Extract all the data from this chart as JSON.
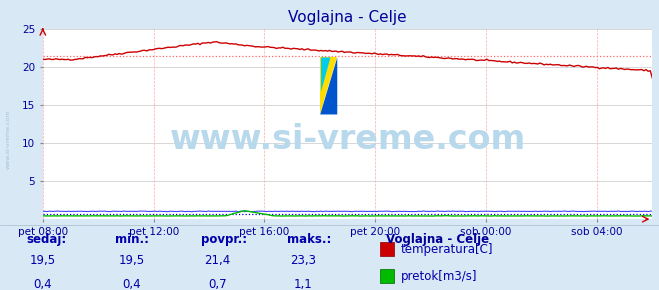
{
  "title": "Voglajna - Celje",
  "title_color": "#000099",
  "bg_color": "#d8e8f4",
  "plot_bg_color": "#ffffff",
  "grid_color_h": "#c8c8c8",
  "grid_color_v": "#ffaaaa",
  "x_labels": [
    "pet 08:00",
    "pet 12:00",
    "pet 16:00",
    "pet 20:00",
    "sob 00:00",
    "sob 04:00"
  ],
  "x_tick_norm": [
    0.0,
    0.1818,
    0.3636,
    0.5454,
    0.7272,
    0.909
  ],
  "y_min": 0,
  "y_max": 25,
  "temp_color": "#cc0000",
  "flow_color": "#00bb00",
  "height_color": "#4444ff",
  "temp_avg_color": "#ff6666",
  "flow_avg_color": "#0000dd",
  "watermark_text": "www.si-vreme.com",
  "watermark_color": "#b8d8ec",
  "watermark_fontsize": 24,
  "legend_title": "Voglajna - Celje",
  "legend_title_color": "#000099",
  "stats_labels": [
    "sedaj:",
    "min.:",
    "povpr.:",
    "maks.:"
  ],
  "stats_temp": [
    "19,5",
    "19,5",
    "21,4",
    "23,3"
  ],
  "stats_flow": [
    "0,4",
    "0,4",
    "0,7",
    "1,1"
  ],
  "stats_color": "#0000aa",
  "label_temp": "temperatura[C]",
  "label_flow": "pretok[m3/s]",
  "temp_avg": 21.4,
  "flow_avg": 0.7,
  "n_points": 288
}
